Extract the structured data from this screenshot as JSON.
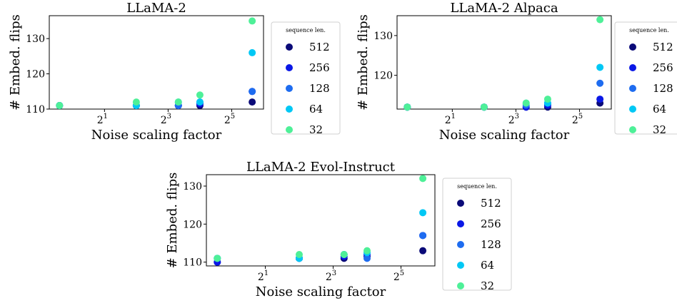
{
  "chart_data": [
    {
      "type": "scatter",
      "title": "LLaMA-2",
      "xlabel": "Noise scaling factor",
      "ylabel": "# Embed. flips",
      "xscale": "log2",
      "xlim": [
        0.6,
        64
      ],
      "ylim": [
        110,
        136.5
      ],
      "xticks": [
        {
          "value": 2,
          "base": "2",
          "exp": "1"
        },
        {
          "value": 8,
          "base": "2",
          "exp": "3"
        },
        {
          "value": 32,
          "base": "2",
          "exp": "5"
        }
      ],
      "yticks": [
        {
          "value": 110,
          "label": "110"
        },
        {
          "value": 120,
          "label": "120"
        },
        {
          "value": 130,
          "label": "130"
        }
      ],
      "x": [
        0.75,
        4,
        10,
        16,
        50
      ],
      "legend_title": "sequence len.",
      "legend_position": "right",
      "series": [
        {
          "name": "512",
          "color": "#0a0a78",
          "values": [
            111,
            111,
            111,
            111,
            112
          ]
        },
        {
          "name": "256",
          "color": "#0a18e6",
          "values": [
            111,
            111,
            111,
            111.5,
            115
          ]
        },
        {
          "name": "128",
          "color": "#1e6cf0",
          "values": [
            111,
            111,
            111,
            112,
            115
          ]
        },
        {
          "name": "64",
          "color": "#00c8f5",
          "values": [
            111,
            111,
            112,
            112,
            126
          ]
        },
        {
          "name": "32",
          "color": "#4ef098",
          "values": [
            111,
            112,
            112,
            114,
            135
          ]
        }
      ]
    },
    {
      "type": "scatter",
      "title": "LLaMA-2 Alpaca",
      "xlabel": "Noise scaling factor",
      "ylabel": "# Embed. flips",
      "xscale": "log2",
      "xlim": [
        0.6,
        64
      ],
      "ylim": [
        111.5,
        135
      ],
      "xticks": [
        {
          "value": 2,
          "base": "2",
          "exp": "1"
        },
        {
          "value": 8,
          "base": "2",
          "exp": "3"
        },
        {
          "value": 32,
          "base": "2",
          "exp": "5"
        }
      ],
      "yticks": [
        {
          "value": 120,
          "label": "120"
        },
        {
          "value": 130,
          "label": "130"
        }
      ],
      "x": [
        0.75,
        4,
        10,
        16,
        50
      ],
      "legend_title": "sequence len.",
      "legend_position": "right",
      "series": [
        {
          "name": "512",
          "color": "#0a0a78",
          "values": [
            112,
            112,
            112,
            112,
            113
          ]
        },
        {
          "name": "256",
          "color": "#0a18e6",
          "values": [
            112,
            112,
            112,
            112.5,
            114
          ]
        },
        {
          "name": "128",
          "color": "#1e6cf0",
          "values": [
            112,
            112,
            112.5,
            113,
            118
          ]
        },
        {
          "name": "64",
          "color": "#00c8f5",
          "values": [
            112,
            112,
            113,
            113,
            122
          ]
        },
        {
          "name": "32",
          "color": "#4ef098",
          "values": [
            112,
            112,
            113,
            114,
            134
          ]
        }
      ]
    },
    {
      "type": "scatter",
      "title": "LLaMA-2 Evol-Instruct",
      "xlabel": "Noise scaling factor",
      "ylabel": "# Embed. flips",
      "xscale": "log2",
      "xlim": [
        0.6,
        64
      ],
      "ylim": [
        109,
        133
      ],
      "xticks": [
        {
          "value": 2,
          "base": "2",
          "exp": "1"
        },
        {
          "value": 8,
          "base": "2",
          "exp": "3"
        },
        {
          "value": 32,
          "base": "2",
          "exp": "5"
        }
      ],
      "yticks": [
        {
          "value": 110,
          "label": "110"
        },
        {
          "value": 120,
          "label": "120"
        },
        {
          "value": 130,
          "label": "130"
        }
      ],
      "x": [
        0.75,
        4,
        10,
        16,
        50
      ],
      "legend_title": "sequence len.",
      "legend_position": "right",
      "series": [
        {
          "name": "512",
          "color": "#0a0a78",
          "values": [
            110,
            111,
            111,
            111.5,
            113
          ]
        },
        {
          "name": "256",
          "color": "#0a18e6",
          "values": [
            110,
            111,
            111.5,
            112,
            117
          ]
        },
        {
          "name": "128",
          "color": "#1e6cf0",
          "values": [
            111,
            111,
            112,
            111,
            117
          ]
        },
        {
          "name": "64",
          "color": "#00c8f5",
          "values": [
            111,
            111,
            112,
            112.5,
            123
          ]
        },
        {
          "name": "32",
          "color": "#4ef098",
          "values": [
            111,
            112,
            112,
            113,
            132
          ]
        }
      ]
    }
  ]
}
